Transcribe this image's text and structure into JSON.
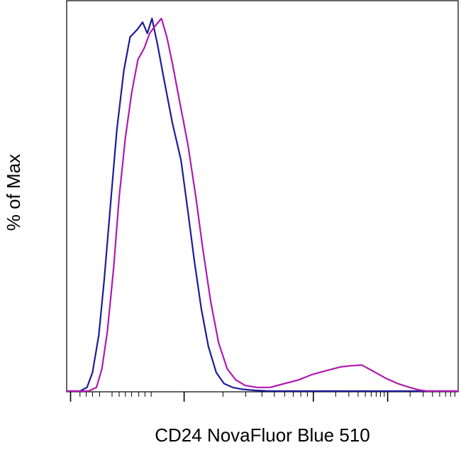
{
  "chart_data": {
    "type": "line",
    "title": "",
    "xlabel": "CD24 NovaFluor Blue 510",
    "ylabel": "% of Max",
    "x_scale": "log (flow cytometry, biexponential)",
    "x_tick_labels": [],
    "y_tick_labels": [],
    "ylim": [
      0,
      100
    ],
    "grid": false,
    "legend": "none",
    "series": [
      {
        "color": "#1c1c9a",
        "points": [
          [
            -0.33,
            0
          ],
          [
            -0.24,
            1
          ],
          [
            -0.17,
            5
          ],
          [
            -0.09,
            15
          ],
          [
            -0.02,
            30
          ],
          [
            0.06,
            50
          ],
          [
            0.14,
            70
          ],
          [
            0.23,
            86
          ],
          [
            0.31,
            95
          ],
          [
            0.4,
            97
          ],
          [
            0.47,
            99
          ],
          [
            0.53,
            96
          ],
          [
            0.59,
            100
          ],
          [
            0.66,
            93
          ],
          [
            0.74,
            84
          ],
          [
            0.85,
            72
          ],
          [
            0.96,
            62
          ],
          [
            1.05,
            48
          ],
          [
            1.13,
            35
          ],
          [
            1.22,
            22
          ],
          [
            1.31,
            12
          ],
          [
            1.41,
            5
          ],
          [
            1.51,
            2
          ],
          [
            1.62,
            1
          ],
          [
            1.74,
            0.5
          ],
          [
            1.9,
            0.2
          ],
          [
            2.1,
            0
          ],
          [
            4.5,
            0
          ]
        ]
      },
      {
        "color": "#b019b0",
        "points": [
          [
            -0.22,
            0
          ],
          [
            -0.12,
            1
          ],
          [
            -0.05,
            6
          ],
          [
            0.02,
            16
          ],
          [
            0.1,
            33
          ],
          [
            0.17,
            52
          ],
          [
            0.25,
            68
          ],
          [
            0.33,
            80
          ],
          [
            0.41,
            89
          ],
          [
            0.49,
            92
          ],
          [
            0.56,
            96
          ],
          [
            0.63,
            98
          ],
          [
            0.71,
            100
          ],
          [
            0.78,
            95
          ],
          [
            0.85,
            88
          ],
          [
            0.94,
            78
          ],
          [
            1.05,
            66
          ],
          [
            1.15,
            52
          ],
          [
            1.24,
            38
          ],
          [
            1.34,
            24
          ],
          [
            1.44,
            13
          ],
          [
            1.55,
            6
          ],
          [
            1.66,
            3
          ],
          [
            1.78,
            1.5
          ],
          [
            1.93,
            1
          ],
          [
            2.1,
            1
          ],
          [
            2.28,
            2
          ],
          [
            2.46,
            3
          ],
          [
            2.64,
            4.5
          ],
          [
            2.82,
            5.5
          ],
          [
            3.0,
            6.5
          ],
          [
            3.13,
            6.8
          ],
          [
            3.27,
            7
          ],
          [
            3.4,
            5.5
          ],
          [
            3.57,
            3.5
          ],
          [
            3.73,
            2
          ],
          [
            3.88,
            1
          ],
          [
            4.0,
            0.3
          ],
          [
            4.1,
            0
          ],
          [
            4.5,
            0
          ]
        ]
      }
    ]
  }
}
